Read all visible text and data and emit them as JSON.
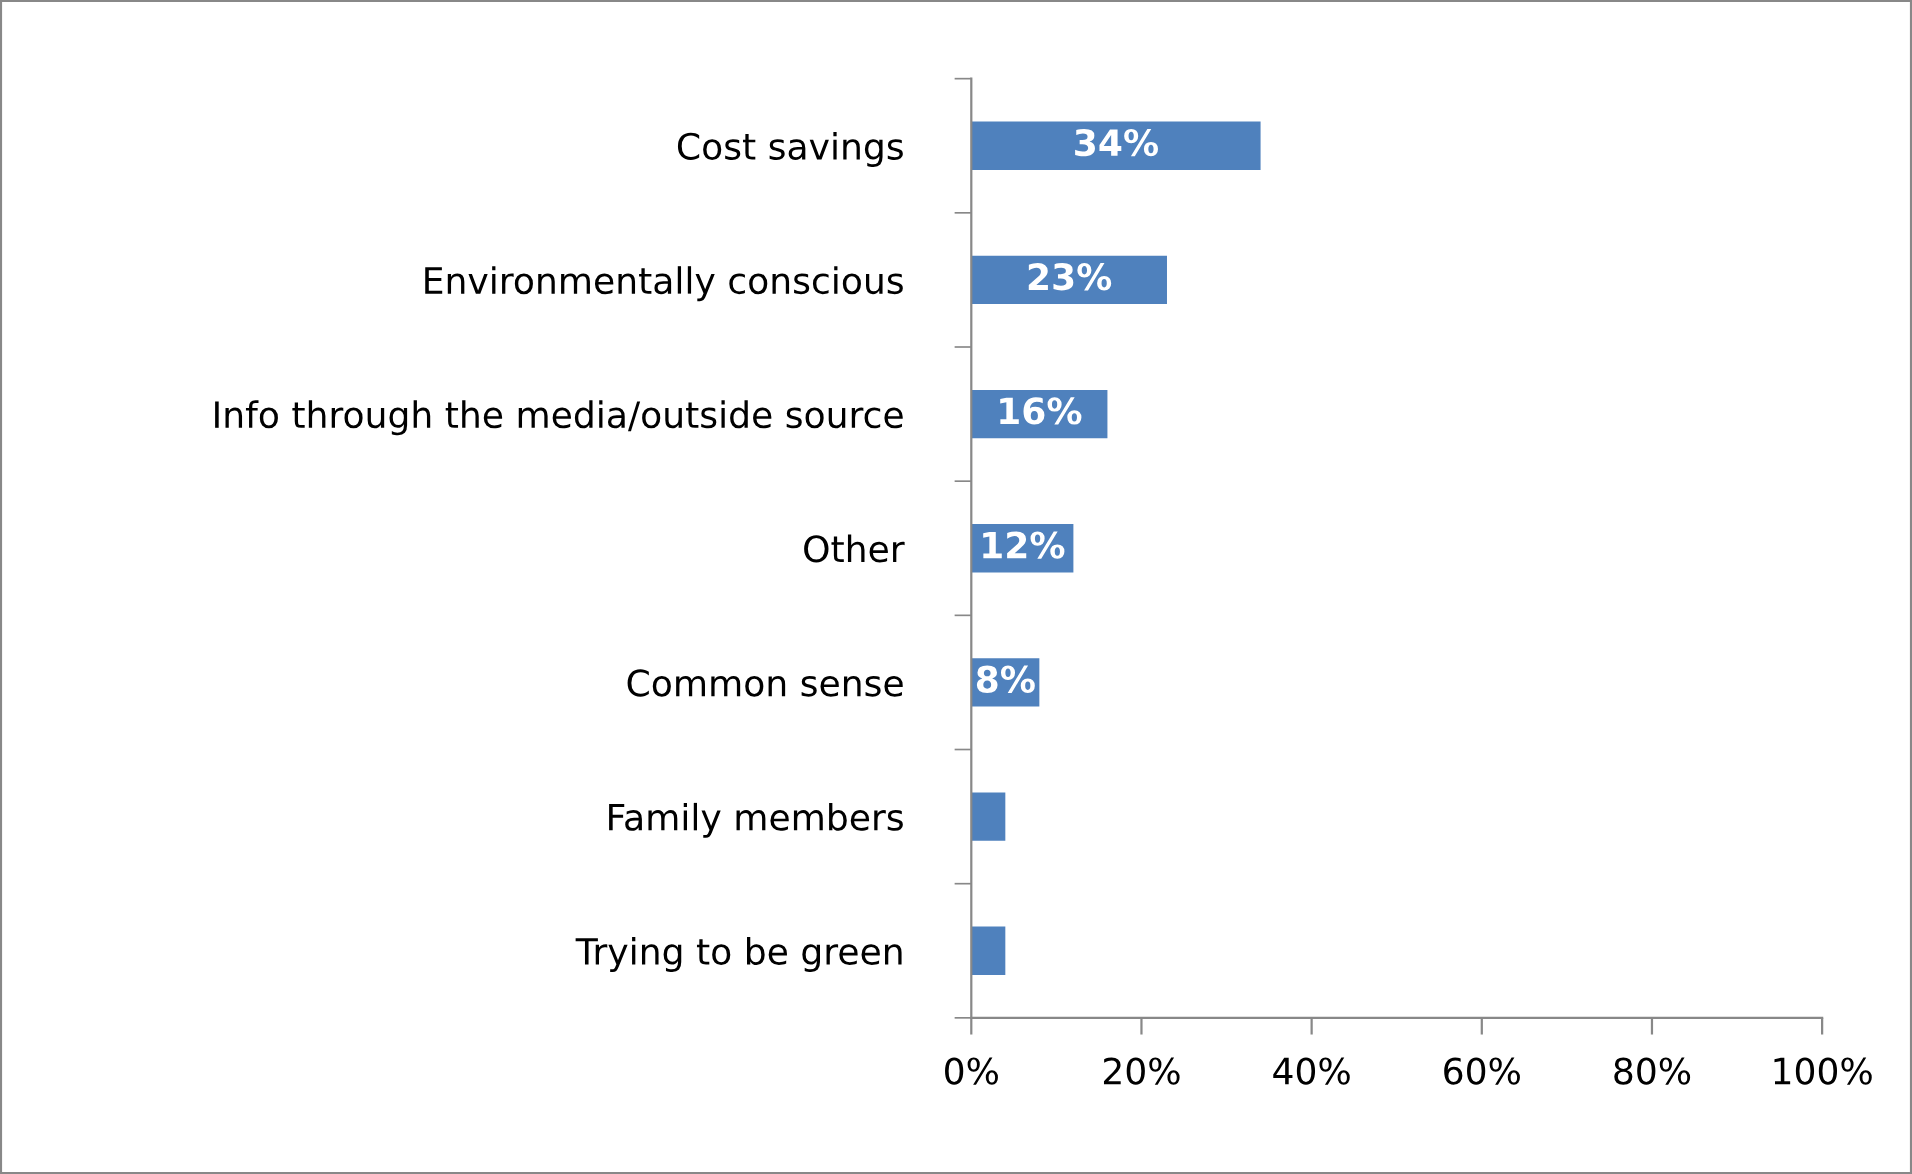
{
  "chart_data": {
    "type": "bar",
    "orientation": "horizontal",
    "categories": [
      "Cost savings",
      "Environmentally conscious",
      "Info through the media/outside source",
      "Other",
      "Common sense",
      "Family members",
      "Trying to be green"
    ],
    "values": [
      34,
      23,
      16,
      12,
      8,
      4,
      4
    ],
    "value_labels": [
      "34%",
      "23%",
      "16%",
      "12%",
      "8%",
      null,
      null
    ],
    "color": "#4f81bd",
    "xlim": [
      0,
      100
    ],
    "xticks": [
      {
        "value": 0,
        "label": "0%"
      },
      {
        "value": 20,
        "label": "20%"
      },
      {
        "value": 40,
        "label": "40%"
      },
      {
        "value": 60,
        "label": "60%"
      },
      {
        "value": 80,
        "label": "80%"
      },
      {
        "value": 100,
        "label": "100%"
      }
    ],
    "grid": false
  }
}
